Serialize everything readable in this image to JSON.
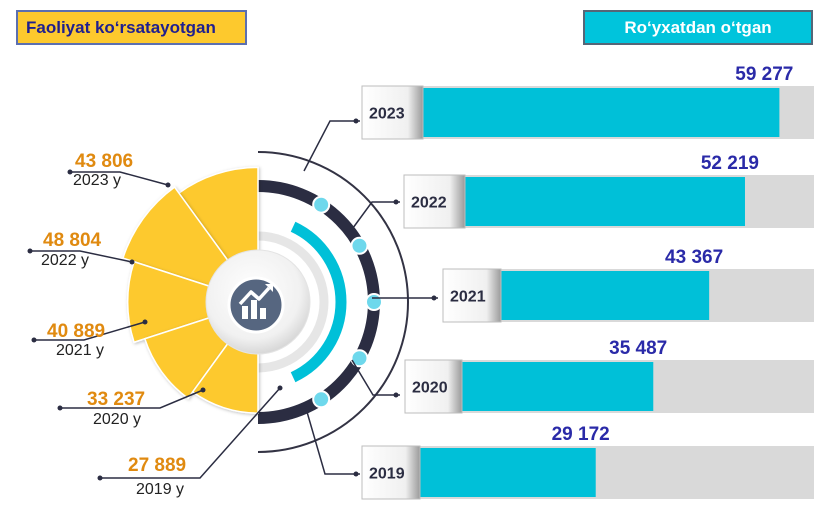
{
  "headers": {
    "left": "Faoliyat ko‘rsatayotgan",
    "right": "Ro‘yxatdan o‘tgan"
  },
  "colors": {
    "active": "#fdc92d",
    "active_value_text": "#e08a10",
    "registered_bar": "#00c0d8",
    "bar_track": "#d9d9d9",
    "registered_value_text": "#2a2aa8",
    "ring_dark": "#2b2d42"
  },
  "center_icon": "growth-chart-icon",
  "chart_data": [
    {
      "type": "pie",
      "title": "Faoliyat ko‘rsatayotgan",
      "categories": [
        "2023 y",
        "2022 y",
        "2021 y",
        "2020 y",
        "2019 y"
      ],
      "values": [
        43806,
        48804,
        40889,
        33237,
        27889
      ],
      "value_labels": [
        "43 806",
        "48 804",
        "40 889",
        "33 237",
        "27 889"
      ]
    },
    {
      "type": "bar",
      "title": "Ro‘yxatdan o‘tgan",
      "orientation": "horizontal",
      "categories": [
        "2023",
        "2022",
        "2021",
        "2020",
        "2019"
      ],
      "values": [
        59277,
        52219,
        43367,
        35487,
        29172
      ],
      "value_labels": [
        "59 277",
        "52 219",
        "43 367",
        "35 487",
        "29 172"
      ],
      "xlim": [
        0,
        65000
      ]
    }
  ]
}
